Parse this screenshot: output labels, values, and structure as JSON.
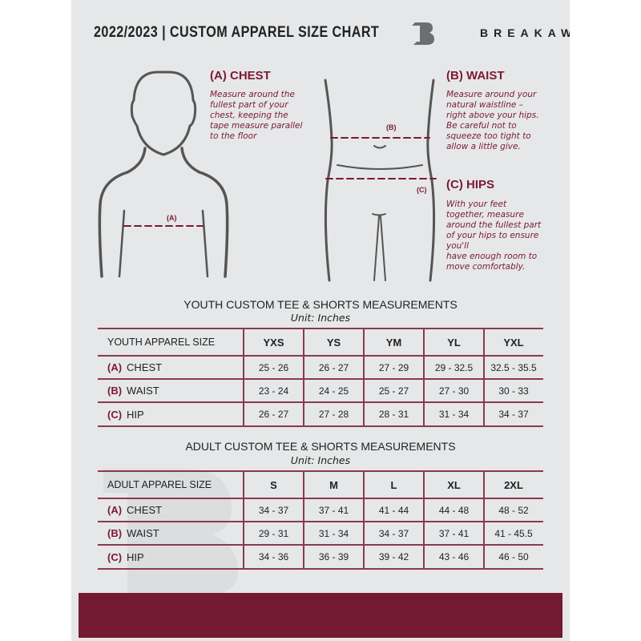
{
  "header": {
    "title": "2022/2023  |  CUSTOM APPAREL SIZE CHART",
    "brand": "BREAKAWAY"
  },
  "colors": {
    "accent": "#741a32",
    "background": "#e6e7e8",
    "outline": "#555555"
  },
  "measures": {
    "chest": {
      "heading": "(A) CHEST",
      "text": "Measure around the\nfullest part of your\nchest, keeping the\ntape measure parallel\nto the floor",
      "marker": "(A)"
    },
    "waist": {
      "heading": "(B) WAIST",
      "text": "Measure around your\nnatural waistline –\nright above your hips.\nBe careful not to\nsqueeze too tight to\nallow a little give.",
      "marker": "(B)"
    },
    "hips": {
      "heading": "(C) HIPS",
      "text": "With your feet\ntogether, measure\naround the fullest part\nof your hips to ensure\nyou'll\nhave enough room to\nmove comfortably.",
      "marker": "(C)"
    }
  },
  "tables": [
    {
      "title": "YOUTH CUSTOM TEE & SHORTS MEASUREMENTS",
      "unit": "Unit: Inches",
      "corner": "YOUTH APPAREL SIZE",
      "sizes": [
        "YXS",
        "YS",
        "YM",
        "YL",
        "YXL"
      ],
      "rows": [
        {
          "tag": "(A)",
          "label": "CHEST",
          "values": [
            "25 - 26",
            "26 - 27",
            "27 - 29",
            "29 - 32.5",
            "32.5 - 35.5"
          ]
        },
        {
          "tag": "(B)",
          "label": "WAIST",
          "values": [
            "23 - 24",
            "24 - 25",
            "25 - 27",
            "27 - 30",
            "30 - 33"
          ]
        },
        {
          "tag": "(C)",
          "label": "HIP",
          "values": [
            "26 - 27",
            "27 - 28",
            "28 - 31",
            "31 - 34",
            "34 - 37"
          ]
        }
      ]
    },
    {
      "title": "ADULT CUSTOM TEE & SHORTS MEASUREMENTS",
      "unit": "Unit: Inches",
      "corner": "ADULT APPAREL SIZE",
      "sizes": [
        "S",
        "M",
        "L",
        "XL",
        "2XL"
      ],
      "rows": [
        {
          "tag": "(A)",
          "label": "CHEST",
          "values": [
            "34 - 37",
            "37 - 41",
            "41 - 44",
            "44 - 48",
            "48 - 52"
          ]
        },
        {
          "tag": "(B)",
          "label": "WAIST",
          "values": [
            "29 - 31",
            "31 - 34",
            "34 - 37",
            "37 - 41",
            "41 - 45.5"
          ]
        },
        {
          "tag": "(C)",
          "label": "HIP",
          "values": [
            "34 - 36",
            "36 - 39",
            "39 - 42",
            "43 - 46",
            "46 - 50"
          ]
        }
      ]
    }
  ]
}
